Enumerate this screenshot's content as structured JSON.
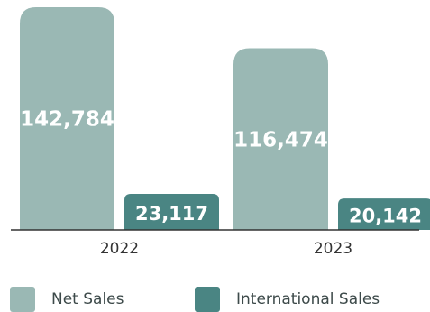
{
  "chart_data": {
    "type": "bar",
    "title": "",
    "xlabel": "",
    "ylabel": "",
    "categories": [
      "2022",
      "2023"
    ],
    "series": [
      {
        "name": "Net Sales",
        "values": [
          142784,
          116474
        ],
        "labels": [
          "142,784",
          "116,474"
        ],
        "color": "#9ab8b4"
      },
      {
        "name": "International Sales",
        "values": [
          23117,
          20142
        ],
        "labels": [
          "23,117",
          "20,142"
        ],
        "color": "#4a8583"
      }
    ],
    "ylim": [
      0,
      142784
    ],
    "grid": false,
    "legend_position": "bottom"
  }
}
